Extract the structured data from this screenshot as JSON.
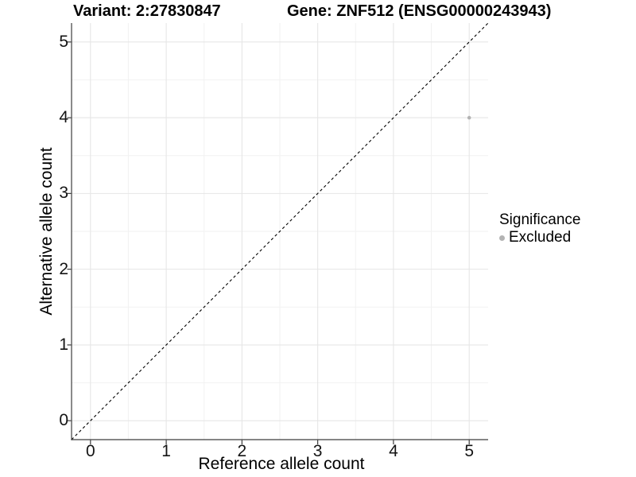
{
  "titles": {
    "variant": "Variant: 2:27830847",
    "gene": "Gene: ZNF512 (ENSG00000243943)"
  },
  "axes": {
    "x": {
      "label": "Reference allele count",
      "ticks": [
        "0",
        "1",
        "2",
        "3",
        "4",
        "5"
      ]
    },
    "y": {
      "label": "Alternative allele count",
      "ticks": [
        "0",
        "1",
        "2",
        "3",
        "4",
        "5"
      ]
    }
  },
  "legend": {
    "title": "Significance",
    "items": [
      {
        "label": "Excluded",
        "color": "#b3b3b3"
      }
    ]
  },
  "colors": {
    "grid_major": "#e6e6e6",
    "grid_minor": "#f2f2f2",
    "axis_line": "#3c3c3c",
    "reference_line": "#000000",
    "tick_text": "#141414"
  },
  "chart_data": {
    "type": "scatter",
    "title": "Variant: 2:27830847 | Gene: ZNF512 (ENSG00000243943)",
    "xlabel": "Reference allele count",
    "ylabel": "Alternative allele count",
    "xlim": [
      -0.25,
      5.25
    ],
    "ylim": [
      -0.25,
      5.25
    ],
    "x_ticks": [
      0,
      1,
      2,
      3,
      4,
      5
    ],
    "y_ticks": [
      0,
      1,
      2,
      3,
      4,
      5
    ],
    "grid": "major+minor",
    "legend_position": "right",
    "series": [
      {
        "name": "Excluded",
        "color": "#b3b3b3",
        "points": [
          {
            "x": 5,
            "y": 4
          }
        ]
      }
    ],
    "reference_line": {
      "style": "dashed",
      "slope": 1,
      "intercept": 0,
      "color": "#000000"
    }
  }
}
